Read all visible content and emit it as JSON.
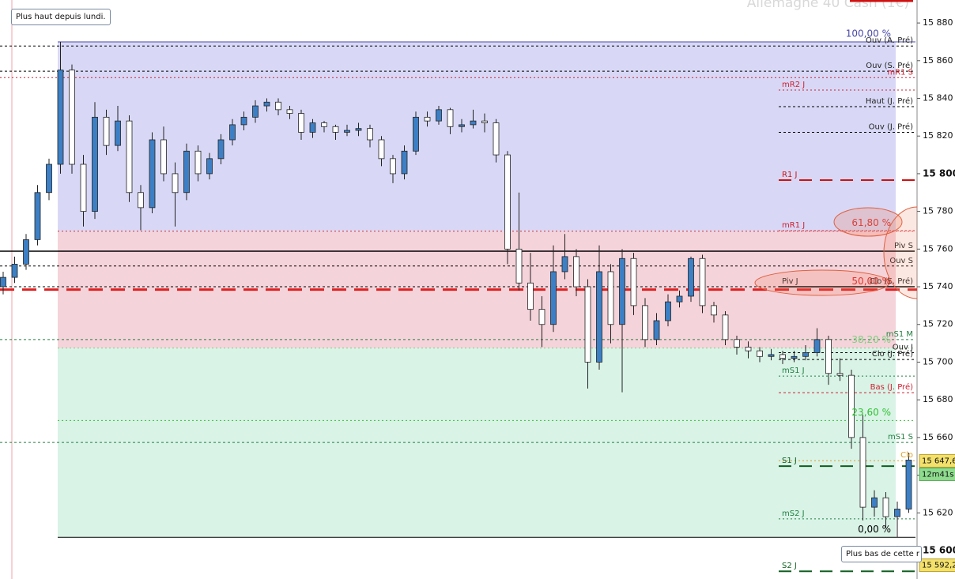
{
  "chart_data": {
    "type": "candlestick",
    "title": "Allemagne 40 Cash (1€)",
    "ylim": [
      15584.9,
      15892.2
    ],
    "yticks": [
      {
        "value": 15600,
        "label": "15 600"
      },
      {
        "value": 15620,
        "label": "15 620"
      },
      {
        "value": 15640,
        "label": "15 640"
      },
      {
        "value": 15660,
        "label": "15 660"
      },
      {
        "value": 15680,
        "label": "15 680"
      },
      {
        "value": 15700,
        "label": "15 700"
      },
      {
        "value": 15720,
        "label": "15 720"
      },
      {
        "value": 15740,
        "label": "15 740"
      },
      {
        "value": 15760,
        "label": "15 760"
      },
      {
        "value": 15780,
        "label": "15 780"
      },
      {
        "value": 15800,
        "label": "15 800"
      },
      {
        "value": 15820,
        "label": "15 820"
      },
      {
        "value": 15840,
        "label": "15 840"
      },
      {
        "value": 15860,
        "label": "15 860"
      },
      {
        "value": 15880,
        "label": "15 880"
      }
    ],
    "up_color": "#3d7fc4",
    "down_color": "#ffffff",
    "ohlc": [
      [
        15740,
        15748,
        15736,
        15745
      ],
      [
        15745,
        15756,
        15742,
        15752
      ],
      [
        15752,
        15768,
        15749,
        15765
      ],
      [
        15765,
        15794,
        15762,
        15790
      ],
      [
        15790,
        15808,
        15786,
        15805
      ],
      [
        15805,
        15870,
        15800,
        15855
      ],
      [
        15855,
        15858,
        15800,
        15805
      ],
      [
        15805,
        15810,
        15772,
        15780
      ],
      [
        15780,
        15838,
        15776,
        15830
      ],
      [
        15830,
        15834,
        15810,
        15815
      ],
      [
        15815,
        15836,
        15812,
        15828
      ],
      [
        15828,
        15831,
        15785,
        15790
      ],
      [
        15790,
        15794,
        15770,
        15782
      ],
      [
        15782,
        15822,
        15779,
        15818
      ],
      [
        15818,
        15825,
        15796,
        15800
      ],
      [
        15800,
        15806,
        15772,
        15790
      ],
      [
        15790,
        15816,
        15786,
        15812
      ],
      [
        15812,
        15815,
        15796,
        15800
      ],
      [
        15800,
        15811,
        15797,
        15808
      ],
      [
        15808,
        15821,
        15805,
        15818
      ],
      [
        15818,
        15829,
        15815,
        15826
      ],
      [
        15826,
        15833,
        15823,
        15830
      ],
      [
        15830,
        15839,
        15827,
        15836
      ],
      [
        15836,
        15840,
        15833,
        15838
      ],
      [
        15838,
        15840,
        15831,
        15834
      ],
      [
        15834,
        15836,
        15829,
        15832
      ],
      [
        15832,
        15834,
        15818,
        15822
      ],
      [
        15822,
        15829,
        15819,
        15827
      ],
      [
        15827,
        15828,
        15822,
        15825
      ],
      [
        15825,
        15826,
        15818,
        15822
      ],
      [
        15822,
        15826,
        15820,
        15823
      ],
      [
        15823,
        15827,
        15820,
        15824
      ],
      [
        15824,
        15826,
        15814,
        15818
      ],
      [
        15818,
        15820,
        15804,
        15808
      ],
      [
        15808,
        15810,
        15795,
        15800
      ],
      [
        15800,
        15815,
        15797,
        15812
      ],
      [
        15812,
        15833,
        15810,
        15830
      ],
      [
        15830,
        15833,
        15825,
        15828
      ],
      [
        15828,
        15836,
        15826,
        15834
      ],
      [
        15834,
        15835,
        15821,
        15825
      ],
      [
        15825,
        15829,
        15822,
        15826
      ],
      [
        15826,
        15834,
        15824,
        15828
      ],
      [
        15828,
        15832,
        15822,
        15827
      ],
      [
        15827,
        15829,
        15806,
        15810
      ],
      [
        15810,
        15812,
        15752,
        15760
      ],
      [
        15760,
        15790,
        15738,
        15742
      ],
      [
        15742,
        15758,
        15722,
        15728
      ],
      [
        15728,
        15735,
        15708,
        15720
      ],
      [
        15720,
        15762,
        15716,
        15748
      ],
      [
        15748,
        15768,
        15744,
        15756
      ],
      [
        15756,
        15760,
        15735,
        15740
      ],
      [
        15740,
        15744,
        15686,
        15700
      ],
      [
        15700,
        15762,
        15696,
        15748
      ],
      [
        15748,
        15752,
        15710,
        15720
      ],
      [
        15720,
        15760,
        15684,
        15755
      ],
      [
        15755,
        15758,
        15725,
        15730
      ],
      [
        15730,
        15734,
        15708,
        15712
      ],
      [
        15712,
        15726,
        15709,
        15722
      ],
      [
        15722,
        15736,
        15719,
        15732
      ],
      [
        15732,
        15738,
        15729,
        15735
      ],
      [
        15735,
        15756,
        15732,
        15755
      ],
      [
        15755,
        15757,
        15726,
        15730
      ],
      [
        15730,
        15732,
        15721,
        15725
      ],
      [
        15725,
        15727,
        15709,
        15712
      ],
      [
        15712,
        15714,
        15704,
        15708
      ],
      [
        15708,
        15711,
        15702,
        15706
      ],
      [
        15706,
        15708,
        15700,
        15703
      ],
      [
        15703,
        15707,
        15701,
        15704
      ],
      [
        15704,
        15706,
        15699,
        15702
      ],
      [
        15702,
        15706,
        15700,
        15703
      ],
      [
        15703,
        15709,
        15701,
        15705
      ],
      [
        15705,
        15718,
        15703,
        15712
      ],
      [
        15712,
        15714,
        15688,
        15694
      ],
      [
        15694,
        15702,
        15690,
        15693
      ],
      [
        15693,
        15696,
        15654,
        15660
      ],
      [
        15660,
        15672,
        15616,
        15623
      ],
      [
        15623,
        15632,
        15618,
        15628
      ],
      [
        15628,
        15631,
        15612,
        15618
      ],
      [
        15618,
        15626,
        15607,
        15622
      ],
      [
        15622,
        15652,
        15620,
        15648
      ]
    ],
    "fib": {
      "zone_colors": [
        "#d8d8f6",
        "#f5d3da",
        "#d9f3e7"
      ],
      "levels": [
        {
          "label": "100,00 %",
          "value": 15870,
          "color": "#4a4aa8",
          "style": "solid"
        },
        {
          "label": "61,80 %",
          "value": 15769.5,
          "color": "#d03030",
          "style": "dotted"
        },
        {
          "label": "50,00 %",
          "value": 15738.5,
          "color": "#e02020",
          "style": "thick"
        },
        {
          "label": "38,20 %",
          "value": 15707.5,
          "color": "#7fd07f",
          "style": "dotted"
        },
        {
          "label": "23,60 %",
          "value": 15669,
          "color": "#30c030",
          "style": "dotted"
        },
        {
          "label": "0,00 %",
          "value": 15607,
          "color": "#000000",
          "style": "solid"
        }
      ]
    },
    "levels": [
      {
        "label": "Ouv (A. Pré)",
        "value": 15867.8,
        "color": "#000000",
        "style": "dashed",
        "span": "full",
        "label_side": "right"
      },
      {
        "label": "Ouv (S. Pré)",
        "value": 15854.4,
        "color": "#000000",
        "style": "dashed",
        "span": "full",
        "label_side": "right"
      },
      {
        "label": "mR1 S",
        "value": 15851,
        "color": "#d02030",
        "style": "dotted",
        "span": "full",
        "label_side": "right"
      },
      {
        "label": "mR2 J",
        "value": 15844.4,
        "color": "#d02030",
        "style": "dotted",
        "span": "day",
        "label_side": "left"
      },
      {
        "label": "Haut (J. Pré)",
        "value": 15835.6,
        "color": "#000000",
        "style": "dashed",
        "span": "day",
        "label_side": "right"
      },
      {
        "label": "Ouv (J. Pré)",
        "value": 15822,
        "color": "#000000",
        "style": "dashed",
        "span": "day",
        "label_side": "right"
      },
      {
        "label": "R1 J",
        "value": 15796.6,
        "color": "#d01010",
        "style": "long",
        "span": "day",
        "label_side": "left"
      },
      {
        "label": "mR1 J",
        "value": 15769.8,
        "color": "#d02030",
        "style": "dotted",
        "span": "day",
        "label_side": "left"
      },
      {
        "label": "Piv S",
        "value": 15758.9,
        "color": "#000000",
        "style": "solid",
        "span": "full",
        "label_side": "right"
      },
      {
        "label": "Ouv S",
        "value": 15751,
        "color": "#000000",
        "style": "dashed",
        "span": "full",
        "label_side": "right"
      },
      {
        "label": "Clo (S. Pré)",
        "value": 15740,
        "color": "#000000",
        "style": "dashed",
        "span": "full",
        "label_side": "right"
      },
      {
        "label": "Piv J",
        "value": 15740,
        "color": "#000000",
        "style": "solid",
        "span": "day",
        "label_side": "left"
      },
      {
        "label": "mS1 M",
        "value": 15712,
        "color": "#208040",
        "style": "dashed",
        "span": "full",
        "label_side": "right"
      },
      {
        "label": "Ouv J",
        "value": 15705,
        "color": "#000000",
        "style": "dashed",
        "span": "day",
        "label_side": "right"
      },
      {
        "label": "Clo (J. Pré)",
        "value": 15701.4,
        "color": "#000000",
        "style": "dashed",
        "span": "day",
        "label_side": "right"
      },
      {
        "label": "mS1 J",
        "value": 15692.6,
        "color": "#208040",
        "style": "dotted",
        "span": "day",
        "label_side": "left"
      },
      {
        "label": "Bas (J. Pré)",
        "value": 15683.8,
        "color": "#d02030",
        "style": "dashed",
        "span": "day",
        "label_side": "right"
      },
      {
        "label": "mS1 S",
        "value": 15657.4,
        "color": "#208040",
        "style": "dashed",
        "span": "full",
        "label_side": "right"
      },
      {
        "label": "Clo",
        "value": 15647.7,
        "color": "#e0a020",
        "style": "dotted",
        "span": "day",
        "label_side": "right"
      },
      {
        "label": "S1 J",
        "value": 15644.8,
        "color": "#106020",
        "style": "long",
        "span": "day",
        "label_side": "left"
      },
      {
        "label": "mS2 J",
        "value": 15616.8,
        "color": "#208040",
        "style": "dotted",
        "span": "day",
        "label_side": "left"
      },
      {
        "label": "S2 J",
        "value": 15589,
        "color": "#106020",
        "style": "long",
        "span": "day",
        "label_side": "left"
      }
    ],
    "price_tags": [
      {
        "value": 15647.6,
        "label": "15 647,6",
        "color": "#f3e16b"
      },
      {
        "value": 15592.2,
        "label": "15 592,2",
        "color": "#f3e16b"
      }
    ],
    "countdown": "12m41s",
    "annotations": [
      "Plus haut depuis lundi.",
      "Plus bas de cette r"
    ]
  }
}
